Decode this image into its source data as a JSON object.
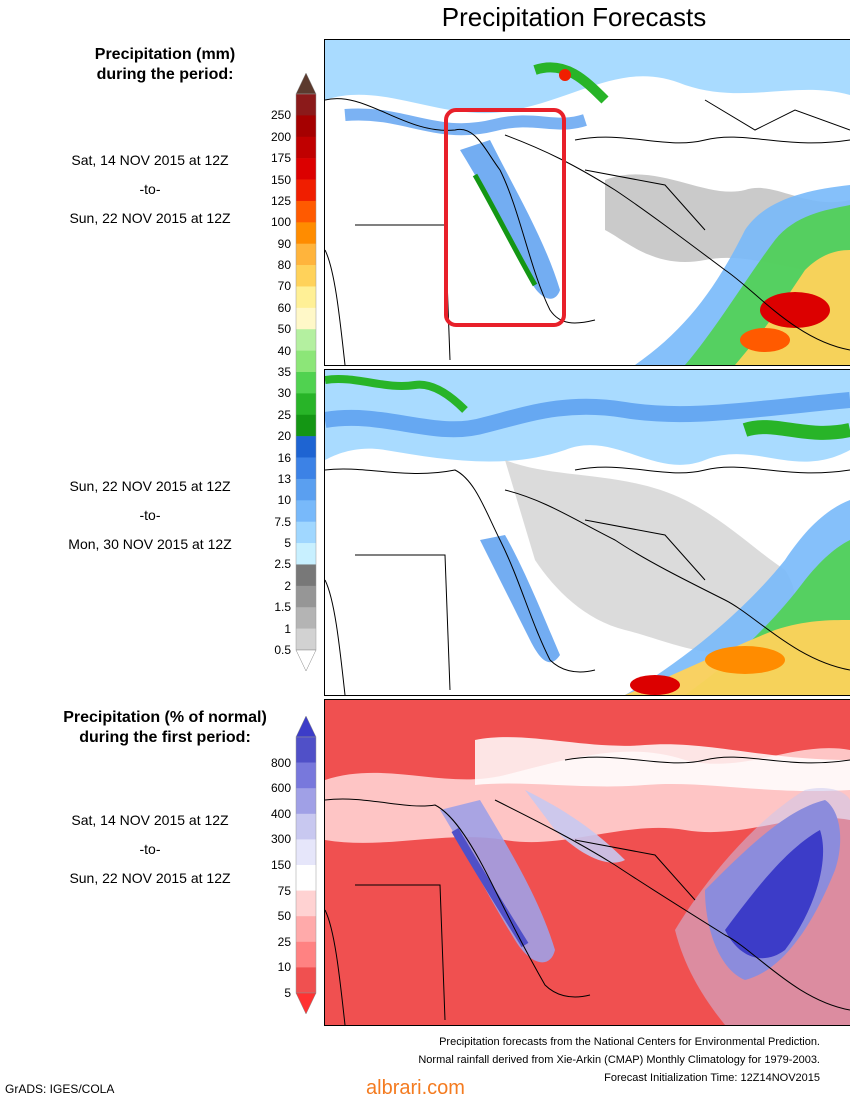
{
  "title": "Precipitation Forecasts",
  "section_mm": {
    "title_line1": "Precipitation (mm)",
    "title_line2": "during the period:"
  },
  "section_pct": {
    "title_line1": "Precipitation (% of normal)",
    "title_line2": "during the first period:"
  },
  "periods": [
    {
      "start": "Sat, 14 NOV 2015 at 12Z",
      "sep": "-to-",
      "end": "Sun, 22 NOV 2015 at 12Z"
    },
    {
      "start": "Sun, 22 NOV 2015 at 12Z",
      "sep": "-to-",
      "end": "Mon, 30 NOV 2015 at 12Z"
    },
    {
      "start": "Sat, 14 NOV 2015 at 12Z",
      "sep": "-to-",
      "end": "Sun, 22 NOV 2015 at 12Z"
    }
  ],
  "scale_mm": {
    "labels": [
      "250",
      "200",
      "175",
      "150",
      "125",
      "100",
      "90",
      "80",
      "70",
      "60",
      "50",
      "40",
      "35",
      "30",
      "25",
      "20",
      "16",
      "13",
      "10",
      "7.5",
      "5",
      "2.5",
      "2",
      "1.5",
      "1",
      "0.5"
    ],
    "colors": [
      "#8b1a1a",
      "#a50000",
      "#c00000",
      "#dc0000",
      "#f01e00",
      "#ff5a00",
      "#ff8c00",
      "#ffb43c",
      "#ffd25a",
      "#fff096",
      "#fff8c8",
      "#b4f0a0",
      "#8ce678",
      "#50d250",
      "#28b428",
      "#149614",
      "#1e64d2",
      "#3c82e6",
      "#5a9ff0",
      "#78b9fa",
      "#a0d7ff",
      "#c8f0ff",
      "#787878",
      "#969696",
      "#b4b4b4",
      "#d2d2d2"
    ],
    "top_color": "#5c3a2e",
    "bottom_color": "#ffffff"
  },
  "scale_pct": {
    "labels": [
      "800",
      "600",
      "400",
      "300",
      "150",
      "75",
      "50",
      "25",
      "10",
      "5"
    ],
    "colors": [
      "#5050c8",
      "#7878dc",
      "#a0a0e6",
      "#c8c8f0",
      "#e6e6fa",
      "#ffffff",
      "#ffd2d2",
      "#ffaaaa",
      "#ff8282",
      "#f05050"
    ],
    "top_color": "#3c3cc8",
    "bottom_color": "#ff3232"
  },
  "highlight_box": {
    "color": "#e8202a"
  },
  "credits": {
    "line1": "Precipitation forecasts from the National Centers for Environmental Prediction.",
    "line2": "Normal rainfall derived from Xie-Arkin (CMAP) Monthly Climatology for 1979-2003.",
    "line3": "Forecast Initialization Time: 12Z14NOV2015"
  },
  "software": "GrADS: IGES/COLA",
  "watermark": "albrari.com"
}
